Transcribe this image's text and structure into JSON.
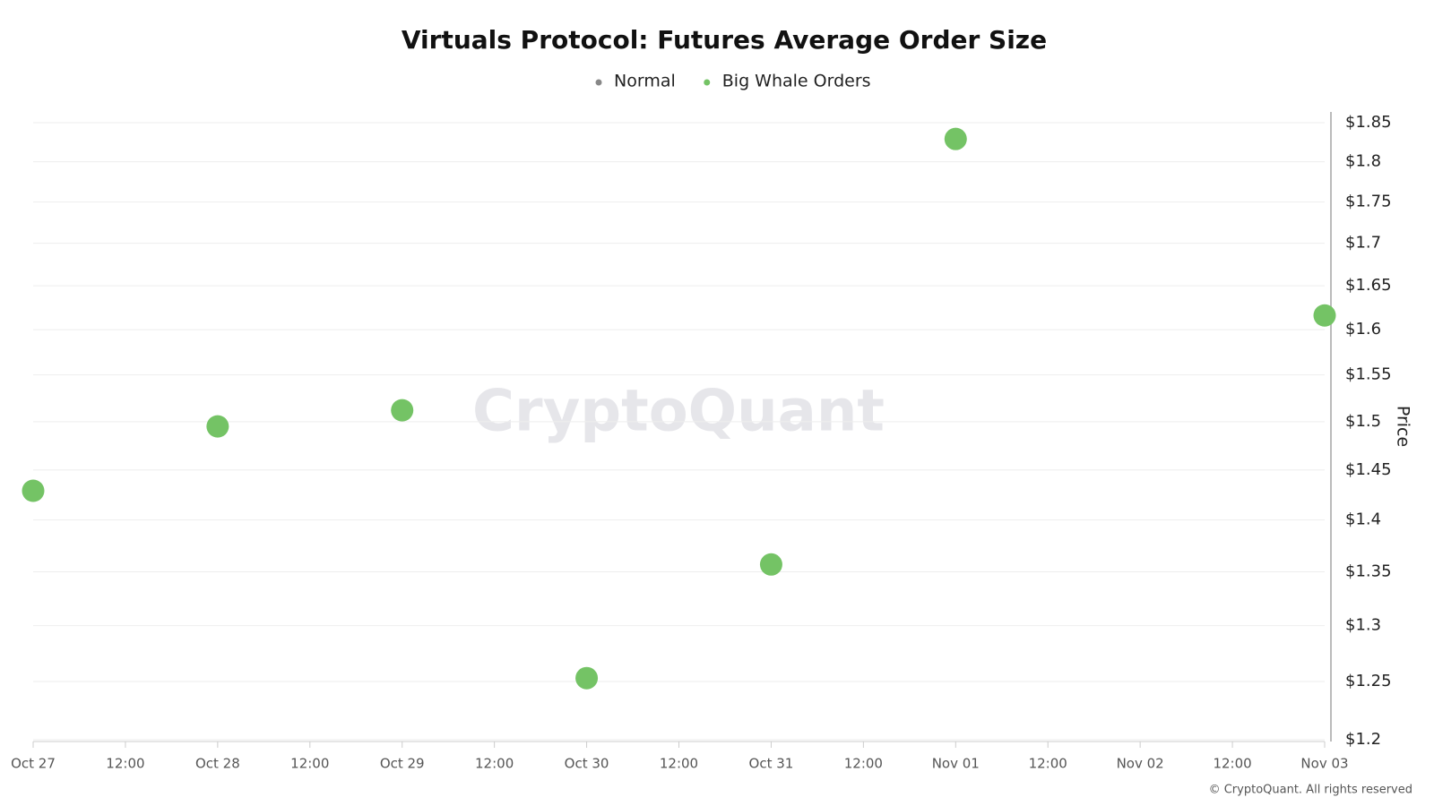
{
  "chart_data": {
    "type": "scatter",
    "title": "Virtuals Protocol: Futures Average Order Size",
    "y_label": "Price",
    "watermark": "CryptoQuant",
    "footer": "© CryptoQuant. All rights reserved",
    "categories": [
      "Oct 27",
      "12:00",
      "Oct 28",
      "12:00",
      "Oct 29",
      "12:00",
      "Oct 30",
      "12:00",
      "Oct 31",
      "12:00",
      "Nov 01",
      "12:00",
      "Nov 02",
      "12:00",
      "Nov 03"
    ],
    "series": [
      {
        "name": "Normal",
        "color": "#888888",
        "values": [
          null,
          null,
          null,
          null,
          null,
          null,
          null,
          null,
          null,
          null,
          null,
          null,
          null,
          null,
          null
        ]
      },
      {
        "name": "Big Whale Orders",
        "color": "#74c365",
        "values": [
          1.429,
          null,
          1.495,
          null,
          1.512,
          null,
          1.253,
          null,
          1.357,
          null,
          1.829,
          null,
          null,
          null,
          1.616
        ]
      }
    ],
    "ylim": [
      1.2,
      1.85
    ],
    "log_scale": true,
    "yticks": [
      {
        "value": 1.2,
        "label": "$1.2"
      },
      {
        "value": 1.25,
        "label": "$1.25"
      },
      {
        "value": 1.3,
        "label": "$1.3"
      },
      {
        "value": 1.35,
        "label": "$1.35"
      },
      {
        "value": 1.4,
        "label": "$1.4"
      },
      {
        "value": 1.45,
        "label": "$1.45"
      },
      {
        "value": 1.5,
        "label": "$1.5"
      },
      {
        "value": 1.55,
        "label": "$1.55"
      },
      {
        "value": 1.6,
        "label": "$1.6"
      },
      {
        "value": 1.65,
        "label": "$1.65"
      },
      {
        "value": 1.7,
        "label": "$1.7"
      },
      {
        "value": 1.75,
        "label": "$1.75"
      },
      {
        "value": 1.8,
        "label": "$1.8"
      },
      {
        "value": 1.85,
        "label": "$1.85"
      }
    ],
    "grid": true
  }
}
